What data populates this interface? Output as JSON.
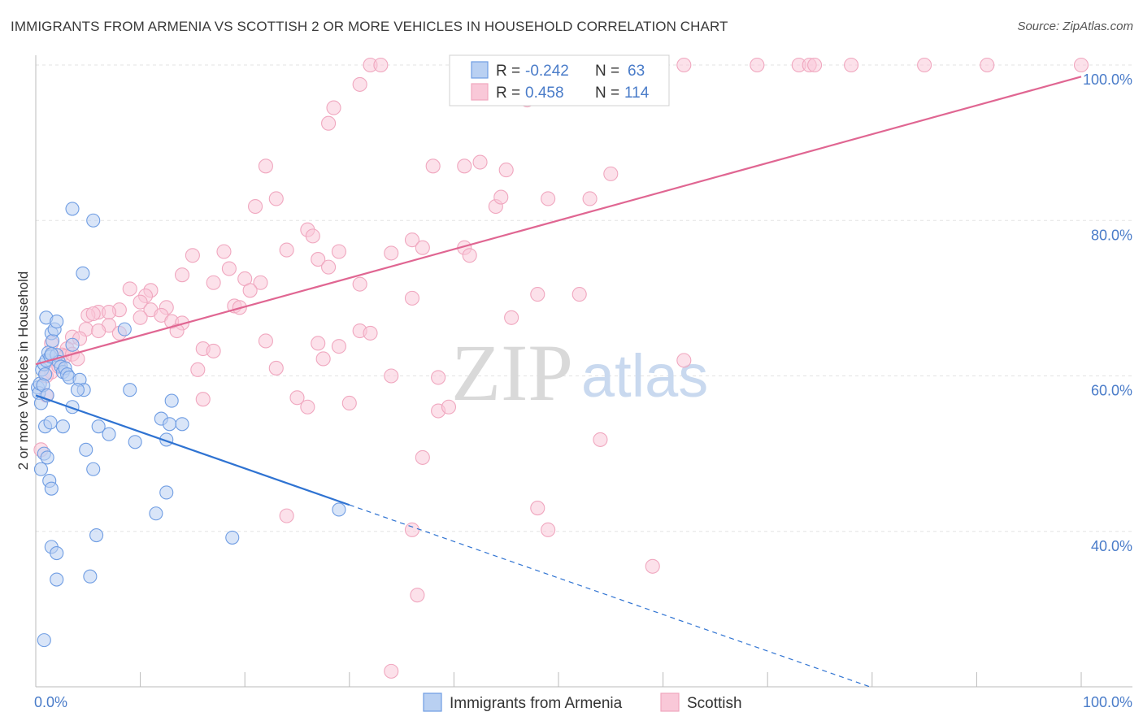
{
  "title": "IMMIGRANTS FROM ARMENIA VS SCOTTISH 2 OR MORE VEHICLES IN HOUSEHOLD CORRELATION CHART",
  "source": "Source: ZipAtlas.com",
  "watermark": {
    "zip": "ZIP",
    "atlas": "atlas"
  },
  "colors": {
    "blue": "#6f9de3",
    "blue_line": "#2f73d2",
    "pink": "#f0a7bf",
    "pink_line": "#e06692",
    "axis_text": "#4a7cc9"
  },
  "legend_top": {
    "rows": [
      {
        "r_label": "R = ",
        "r_value": "-0.242",
        "n_label": "N = ",
        "n_value": "63"
      },
      {
        "r_label": "R = ",
        "r_value": "0.458",
        "n_label": "N = ",
        "n_value": "114"
      }
    ]
  },
  "legend_bottom": [
    "Immigrants from Armenia",
    "Scottish"
  ],
  "chart_data": {
    "type": "scatter",
    "xlabel": "",
    "ylabel": "2 or more Vehicles in Household",
    "xlim": [
      0,
      100
    ],
    "ylim": [
      20,
      100
    ],
    "x_tick_labels": [
      "0.0%",
      "100.0%"
    ],
    "y_tick_labels": [
      "40.0%",
      "60.0%",
      "80.0%",
      "100.0%"
    ],
    "y_ticks": [
      40,
      60,
      80,
      100
    ],
    "grid": true,
    "series": [
      {
        "name": "Immigrants from Armenia",
        "color": "#6f9de3",
        "trend": {
          "x0": 0,
          "y0": 57.5,
          "x1": 30,
          "y1": 43.4,
          "dash_to_x": 80
        },
        "points": [
          [
            0.2,
            58.5
          ],
          [
            0.3,
            57.8
          ],
          [
            0.4,
            59.0
          ],
          [
            0.5,
            56.5
          ],
          [
            0.6,
            60.8
          ],
          [
            0.8,
            61.5
          ],
          [
            0.9,
            60.2
          ],
          [
            1.0,
            62.0
          ],
          [
            1.2,
            63.0
          ],
          [
            1.4,
            62.5
          ],
          [
            1.5,
            65.5
          ],
          [
            1.6,
            64.5
          ],
          [
            1.8,
            66.0
          ],
          [
            2.0,
            62.7
          ],
          [
            2.2,
            61.8
          ],
          [
            2.4,
            61.2
          ],
          [
            2.6,
            60.5
          ],
          [
            2.8,
            61.0
          ],
          [
            3.0,
            60.2
          ],
          [
            3.2,
            59.8
          ],
          [
            1.0,
            67.5
          ],
          [
            2.0,
            67.0
          ],
          [
            1.5,
            62.8
          ],
          [
            0.7,
            58.8
          ],
          [
            1.1,
            57.5
          ],
          [
            0.9,
            53.5
          ],
          [
            1.4,
            54.0
          ],
          [
            2.6,
            53.5
          ],
          [
            3.5,
            56.0
          ],
          [
            4.2,
            59.5
          ],
          [
            4.6,
            58.2
          ],
          [
            4.0,
            58.2
          ],
          [
            0.5,
            48.0
          ],
          [
            0.8,
            50.0
          ],
          [
            1.1,
            49.5
          ],
          [
            1.3,
            46.5
          ],
          [
            1.5,
            45.5
          ],
          [
            3.5,
            64.0
          ],
          [
            3.5,
            81.5
          ],
          [
            5.5,
            80.0
          ],
          [
            4.5,
            73.2
          ],
          [
            8.5,
            66.0
          ],
          [
            9.0,
            58.2
          ],
          [
            6.0,
            53.5
          ],
          [
            7.0,
            52.5
          ],
          [
            9.5,
            51.5
          ],
          [
            12.0,
            54.5
          ],
          [
            12.5,
            51.8
          ],
          [
            12.8,
            53.8
          ],
          [
            14.0,
            53.8
          ],
          [
            13.0,
            56.8
          ],
          [
            4.8,
            50.5
          ],
          [
            5.5,
            48.0
          ],
          [
            12.5,
            45.0
          ],
          [
            11.5,
            42.3
          ],
          [
            18.8,
            39.2
          ],
          [
            29.0,
            42.8
          ],
          [
            5.8,
            39.5
          ],
          [
            1.5,
            38.0
          ],
          [
            2.0,
            37.2
          ],
          [
            2.0,
            33.8
          ],
          [
            5.2,
            34.2
          ],
          [
            0.8,
            26.0
          ]
        ]
      },
      {
        "name": "Scottish",
        "color": "#f0a7bf",
        "trend": {
          "x0": 0,
          "y0": 61.5,
          "x1": 100,
          "y1": 98.5
        },
        "points": [
          [
            32,
            100
          ],
          [
            33,
            100
          ],
          [
            51,
            100
          ],
          [
            59,
            100
          ],
          [
            62,
            100
          ],
          [
            69,
            100
          ],
          [
            73,
            100
          ],
          [
            74,
            100
          ],
          [
            74.5,
            100
          ],
          [
            78,
            100
          ],
          [
            85,
            100
          ],
          [
            91,
            100
          ],
          [
            100,
            100
          ],
          [
            31,
            97.5
          ],
          [
            28.5,
            94.5
          ],
          [
            28,
            92.5
          ],
          [
            47,
            95.5
          ],
          [
            29,
            63.8
          ],
          [
            38,
            87
          ],
          [
            41,
            87
          ],
          [
            42.5,
            87.5
          ],
          [
            45,
            86.5
          ],
          [
            55,
            86
          ],
          [
            22,
            87
          ],
          [
            23,
            82.8
          ],
          [
            21,
            81.8
          ],
          [
            44,
            81.8
          ],
          [
            44.5,
            83
          ],
          [
            49,
            82.8
          ],
          [
            53,
            82.8
          ],
          [
            26,
            78.8
          ],
          [
            26.5,
            78
          ],
          [
            36,
            77.5
          ],
          [
            37,
            76.5
          ],
          [
            41,
            76.5
          ],
          [
            41.5,
            75.5
          ],
          [
            29,
            76
          ],
          [
            34,
            75.8
          ],
          [
            24,
            76.2
          ],
          [
            27,
            75
          ],
          [
            28,
            74
          ],
          [
            18,
            76
          ],
          [
            18.5,
            73.8
          ],
          [
            15,
            75.5
          ],
          [
            20,
            72.5
          ],
          [
            21.5,
            72
          ],
          [
            14,
            73
          ],
          [
            17,
            72
          ],
          [
            20.5,
            71
          ],
          [
            31,
            71.8
          ],
          [
            36,
            70
          ],
          [
            48,
            70.5
          ],
          [
            52,
            70.5
          ],
          [
            9,
            71.2
          ],
          [
            11,
            71
          ],
          [
            10.5,
            70.3
          ],
          [
            8,
            68.5
          ],
          [
            10,
            69.5
          ],
          [
            11,
            68.5
          ],
          [
            12.5,
            68.8
          ],
          [
            6,
            68.2
          ],
          [
            7,
            68.2
          ],
          [
            19,
            69
          ],
          [
            19.5,
            68.8
          ],
          [
            5,
            67.8
          ],
          [
            5.5,
            68
          ],
          [
            10,
            67.5
          ],
          [
            12,
            67.8
          ],
          [
            13,
            67
          ],
          [
            14,
            66.8
          ],
          [
            7,
            66.5
          ],
          [
            4.8,
            66
          ],
          [
            6,
            65.8
          ],
          [
            8,
            65.5
          ],
          [
            13.5,
            65.8
          ],
          [
            3.5,
            65
          ],
          [
            4.2,
            64.8
          ],
          [
            1.5,
            64.2
          ],
          [
            3.0,
            63.5
          ],
          [
            2.5,
            62.7
          ],
          [
            2.8,
            62.5
          ],
          [
            3.5,
            62.8
          ],
          [
            4.0,
            62.2
          ],
          [
            16,
            63.5
          ],
          [
            17,
            63.2
          ],
          [
            22,
            64.5
          ],
          [
            27,
            64.2
          ],
          [
            31,
            65.8
          ],
          [
            32,
            65.5
          ],
          [
            45.5,
            67.5
          ],
          [
            1.5,
            60.5
          ],
          [
            2.2,
            61.2
          ],
          [
            1.0,
            60.0
          ],
          [
            15.5,
            60.8
          ],
          [
            23,
            61
          ],
          [
            27.5,
            62.2
          ],
          [
            34,
            60
          ],
          [
            38.5,
            59.8
          ],
          [
            62,
            62
          ],
          [
            16,
            57
          ],
          [
            25,
            57.2
          ],
          [
            26,
            56
          ],
          [
            30,
            56.5
          ],
          [
            38.5,
            55.5
          ],
          [
            39.5,
            56
          ],
          [
            1.0,
            57.5
          ],
          [
            0.5,
            50.5
          ],
          [
            37,
            49.5
          ],
          [
            54,
            51.8
          ],
          [
            24,
            42
          ],
          [
            36,
            40.2
          ],
          [
            48,
            43
          ],
          [
            49,
            40.2
          ],
          [
            59,
            35.5
          ],
          [
            36.5,
            31.8
          ],
          [
            34,
            22
          ]
        ]
      }
    ]
  }
}
